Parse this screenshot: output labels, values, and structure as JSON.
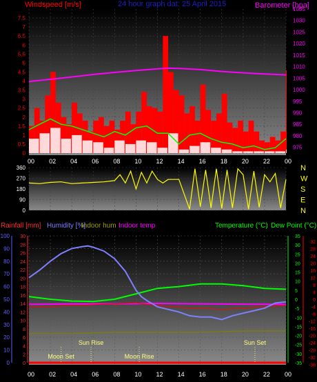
{
  "header": {
    "windspeed_label": "Windspeed [m/s]",
    "title": "24 hour graph dat: 25 April 2015",
    "barometer_label": "Barometer [hpa]"
  },
  "footer": {
    "rainfall_label": "Rainfall [mm]",
    "humidity_label": "Humidity [%]",
    "indoor_hum_label": "Indoor hum",
    "indoor_temp_label": "Indoor temp",
    "temperature_label": "Temperature (°C)",
    "dewpoint_label": "Dew Point (°C)"
  },
  "colors": {
    "wind": "#ff0000",
    "gust": "#00ff00",
    "wind_avg": "#ffffff",
    "barometer": "#ff00ff",
    "winddir": "#ffff00",
    "rain": "#ff0000",
    "humidity": "#8080ff",
    "indoor_hum": "#808000",
    "indoor_temp": "#ff00ff",
    "temperature": "#00ff00",
    "dewpoint": "#ff0000",
    "hum_axis": "#6060ff",
    "rain_axis": "#ff3030",
    "temp_axis": "#00ff00",
    "dew_axis": "#ff0000"
  },
  "x_ticks": [
    "00",
    "02",
    "04",
    "06",
    "08",
    "10",
    "12",
    "14",
    "16",
    "18",
    "20",
    "22",
    "00"
  ],
  "chart_data": [
    {
      "type": "line",
      "name": "wind",
      "x_label": "hour",
      "xlim": [
        0,
        24
      ],
      "wind_ylim": [
        0,
        8
      ],
      "wind_ticks": [
        "0",
        "0.5",
        "1",
        "1.5",
        "2",
        "2.5",
        "3",
        "3.5",
        "4",
        "4.5",
        "5",
        "5.5",
        "6",
        "6.5",
        "7",
        "7.5"
      ],
      "baro_ylim": [
        972.5,
        1035
      ],
      "baro_ticks": [
        "975",
        "980",
        "985",
        "990",
        "995",
        "1000",
        "1005",
        "1010",
        "1015",
        "1020",
        "1025",
        "1030",
        "1035"
      ],
      "series": [
        {
          "name": "Windspeed",
          "hours": [
            0,
            0.5,
            1,
            1.5,
            2,
            2.5,
            3,
            3.5,
            4,
            4.5,
            5,
            5.5,
            6,
            6.5,
            7,
            7.5,
            8,
            8.5,
            9,
            9.5,
            10,
            10.5,
            11,
            11.5,
            12,
            12.5,
            13,
            13.5,
            14,
            14.5,
            15,
            15.5,
            16,
            16.5,
            17,
            17.5,
            18,
            18.5,
            19,
            19.5,
            20,
            20.5,
            21,
            21.5,
            22,
            22.5,
            23,
            23.5,
            24
          ],
          "values": [
            1.5,
            2.5,
            1.8,
            3.2,
            4.5,
            2.8,
            2,
            1.6,
            2.8,
            2.2,
            1.8,
            1.2,
            1.8,
            2,
            1.5,
            1.8,
            1.3,
            1.8,
            2.3,
            1.6,
            2.3,
            3.4,
            2.6,
            2.5,
            2.3,
            6.5,
            4.5,
            3.5,
            3.2,
            2.2,
            2.6,
            1.8,
            3.8,
            2.4,
            1.8,
            2.2,
            3.3,
            1.7,
            1.4,
            1.8,
            1.2,
            1.8,
            1.2,
            0.7,
            0.6,
            0.9,
            0.7,
            1.2,
            4.6
          ]
        },
        {
          "name": "Gust",
          "hours": [
            0,
            1,
            2,
            3,
            4,
            5,
            6,
            7,
            8,
            9,
            10,
            11,
            12,
            13,
            14,
            15,
            16,
            17,
            18,
            19,
            20,
            21,
            22,
            23,
            24
          ],
          "values": [
            1.3,
            1.6,
            1.9,
            1.6,
            1.5,
            1.3,
            1.1,
            0.9,
            1.2,
            1,
            1.4,
            1.5,
            1.1,
            1.1,
            0.5,
            1,
            1.1,
            0.8,
            0.6,
            0.5,
            0.3,
            0.4,
            0.2,
            0.3,
            0.8
          ]
        },
        {
          "name": "Average",
          "hours": [
            0,
            1,
            2,
            3,
            4,
            5,
            6,
            7,
            8,
            9,
            10,
            11,
            12,
            13,
            14,
            15,
            16,
            17,
            18,
            19,
            20,
            21,
            22,
            23,
            24
          ],
          "values": [
            0.8,
            1.1,
            1.4,
            0.8,
            1,
            0.7,
            0.6,
            0.3,
            0.7,
            0.5,
            0.7,
            0.6,
            0.3,
            1.1,
            0.2,
            0.4,
            0.6,
            0.3,
            0.2,
            0.1,
            0.1,
            0.1,
            0.1,
            0.1,
            0.2
          ]
        },
        {
          "name": "Barometer",
          "hours": [
            0,
            2,
            4,
            6,
            8,
            10,
            12,
            13,
            14,
            16,
            18,
            20,
            22,
            24
          ],
          "values": [
            1003.5,
            1004.5,
            1005.5,
            1006.6,
            1007.5,
            1008.3,
            1009.0,
            1009.3,
            1009.2,
            1008.7,
            1007.9,
            1007.3,
            1006.8,
            1006.4
          ]
        }
      ]
    },
    {
      "type": "line",
      "name": "wind_direction",
      "xlim": [
        0,
        24
      ],
      "ylim": [
        0,
        360
      ],
      "y_ticks": [
        "0",
        "90",
        "180",
        "270",
        "360"
      ],
      "compass": [
        "N",
        "W",
        "S",
        "E",
        "N"
      ],
      "series": [
        {
          "name": "Direction",
          "hours": [
            0,
            1,
            2,
            3,
            4,
            5,
            6,
            7,
            8,
            8.5,
            9,
            9.5,
            10,
            10.5,
            11,
            11.5,
            12,
            12.5,
            13,
            14,
            15,
            15.5,
            16,
            16.5,
            17,
            17.5,
            18,
            18.5,
            19,
            19.5,
            20,
            20.5,
            21,
            21.5,
            22,
            22.5,
            23,
            23.5,
            24
          ],
          "values": [
            230,
            225,
            235,
            240,
            225,
            230,
            235,
            240,
            250,
            300,
            230,
            330,
            180,
            320,
            230,
            330,
            260,
            230,
            260,
            260,
            10,
            350,
            30,
            340,
            20,
            350,
            15,
            340,
            20,
            350,
            300,
            10,
            330,
            25,
            300,
            240,
            310,
            20,
            260
          ]
        }
      ]
    },
    {
      "type": "line",
      "name": "temperature_humidity",
      "xlim": [
        0,
        24
      ],
      "humidity_ylim": [
        0,
        100
      ],
      "humidity_ticks": [
        "0",
        "10",
        "20",
        "30",
        "40",
        "50",
        "60",
        "70",
        "80",
        "90",
        "100"
      ],
      "rain_ticks": [
        "0",
        "2",
        "4",
        "6",
        "8",
        "10",
        "12",
        "14",
        "16",
        "18",
        "20",
        "22",
        "24",
        "26",
        "28",
        "30"
      ],
      "temp_ticks": [
        "-35",
        "-30",
        "-25",
        "-20",
        "-15",
        "-10",
        "-5",
        "0",
        "5",
        "10",
        "15",
        "20",
        "25",
        "30",
        "35"
      ],
      "dew_ticks": [
        "-36",
        "-32",
        "-28",
        "-24",
        "-20",
        "-16",
        "-12",
        "-8",
        "-4",
        "0",
        "4",
        "8",
        "12",
        "16",
        "20",
        "24",
        "28",
        "32"
      ],
      "temp_ylim": [
        -35,
        35
      ],
      "series": [
        {
          "name": "Humidity",
          "hours": [
            0,
            1,
            2,
            3,
            4,
            5,
            5.5,
            6,
            7,
            8,
            9,
            10,
            10.5,
            11,
            12,
            13,
            14,
            15,
            16,
            17,
            18,
            19,
            20,
            21,
            22,
            23,
            24
          ],
          "values": [
            67,
            73,
            80,
            86,
            90,
            91.5,
            92,
            91,
            88,
            82,
            72,
            57,
            52,
            49,
            44,
            42,
            40,
            37,
            36,
            36,
            34,
            37,
            39,
            41,
            43,
            47,
            48
          ]
        },
        {
          "name": "Temperature",
          "hours": [
            0,
            2,
            4,
            6,
            8,
            10,
            12,
            14,
            16,
            18,
            20,
            22,
            24
          ],
          "values": [
            1.5,
            0,
            -1,
            -1.2,
            0,
            3,
            6,
            7,
            8.5,
            8.5,
            7.5,
            6,
            5.5
          ]
        },
        {
          "name": "Dew Point",
          "hours": [
            0,
            2,
            4,
            6,
            8,
            10,
            12,
            14,
            16,
            18,
            20,
            22,
            24
          ],
          "values": [
            -4.5,
            -4,
            -3.5,
            -3,
            -2.5,
            -2,
            -3.5,
            -4.5,
            -5,
            -5.5,
            -5,
            -4,
            -3.5
          ]
        },
        {
          "name": "Indoor temp",
          "hours": [
            0,
            4,
            8,
            12,
            16,
            20,
            24
          ],
          "values": [
            -2.8,
            -2.6,
            -2.5,
            -2.3,
            -2.5,
            -2.7,
            -2.8
          ]
        },
        {
          "name": "Indoor hum",
          "hours": [
            0,
            4,
            8,
            12,
            16,
            20,
            24
          ],
          "values": [
            23,
            23,
            24,
            24,
            24,
            25,
            25
          ]
        },
        {
          "name": "Rainfall",
          "hours": [
            0,
            24
          ],
          "values": [
            0,
            0
          ]
        }
      ],
      "annotations": [
        {
          "text": "Moon Set",
          "hour": 3.0
        },
        {
          "text": "Sun Rise",
          "hour": 5.8
        },
        {
          "text": "Moon Rise",
          "hour": 10.3
        },
        {
          "text": "Sun Set",
          "hour": 21.1
        }
      ]
    }
  ]
}
